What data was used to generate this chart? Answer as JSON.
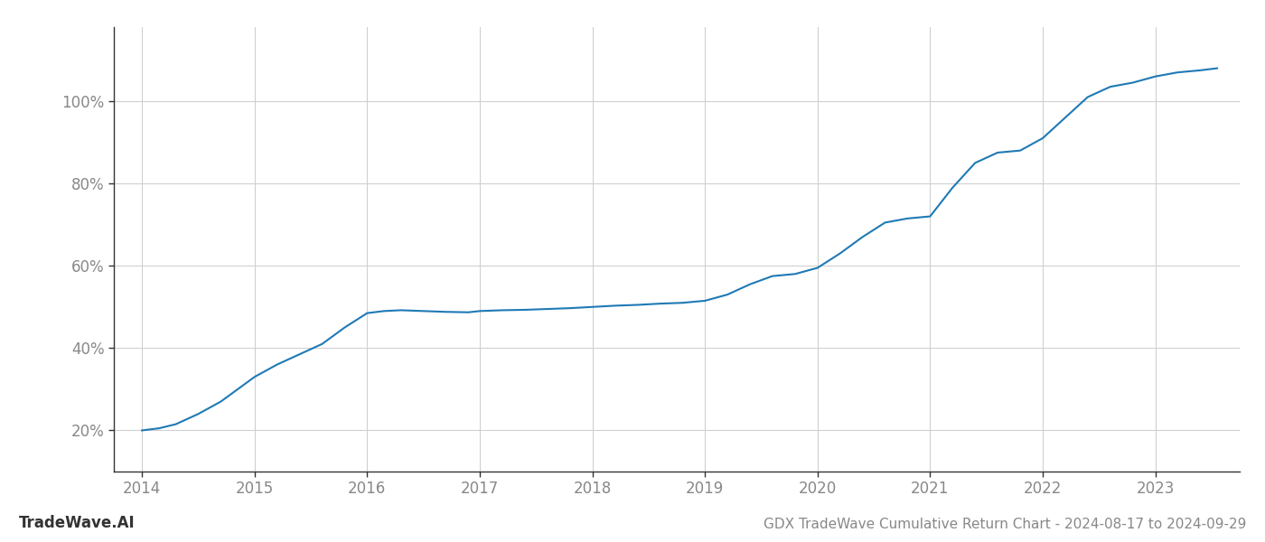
{
  "x_values": [
    2014.0,
    2014.15,
    2014.3,
    2014.5,
    2014.7,
    2014.85,
    2015.0,
    2015.2,
    2015.4,
    2015.6,
    2015.8,
    2016.0,
    2016.15,
    2016.3,
    2016.5,
    2016.7,
    2016.9,
    2017.0,
    2017.2,
    2017.4,
    2017.6,
    2017.8,
    2018.0,
    2018.2,
    2018.4,
    2018.6,
    2018.8,
    2019.0,
    2019.2,
    2019.4,
    2019.6,
    2019.8,
    2020.0,
    2020.2,
    2020.4,
    2020.6,
    2020.8,
    2021.0,
    2021.2,
    2021.4,
    2021.6,
    2021.8,
    2022.0,
    2022.2,
    2022.4,
    2022.6,
    2022.8,
    2023.0,
    2023.2,
    2023.4,
    2023.55
  ],
  "y_values": [
    20.0,
    20.5,
    21.5,
    24.0,
    27.0,
    30.0,
    33.0,
    36.0,
    38.5,
    41.0,
    45.0,
    48.5,
    49.0,
    49.2,
    49.0,
    48.8,
    48.7,
    49.0,
    49.2,
    49.3,
    49.5,
    49.7,
    50.0,
    50.3,
    50.5,
    50.8,
    51.0,
    51.5,
    53.0,
    55.5,
    57.5,
    58.0,
    59.5,
    63.0,
    67.0,
    70.5,
    71.5,
    72.0,
    79.0,
    85.0,
    87.5,
    88.0,
    91.0,
    96.0,
    101.0,
    103.5,
    104.5,
    106.0,
    107.0,
    107.5,
    108.0
  ],
  "line_color": "#1f7ab5",
  "line_width": 1.5,
  "title": "GDX TradeWave Cumulative Return Chart - 2024-08-17 to 2024-09-29",
  "watermark": "TradeWave.AI",
  "xlim": [
    2013.75,
    2023.75
  ],
  "ylim": [
    10,
    118
  ],
  "yticks": [
    20,
    40,
    60,
    80,
    100
  ],
  "xticks": [
    2014,
    2015,
    2016,
    2017,
    2018,
    2019,
    2020,
    2021,
    2022,
    2023
  ],
  "background_color": "#ffffff",
  "grid_color": "#d0d0d0",
  "title_fontsize": 11,
  "tick_fontsize": 12,
  "watermark_fontsize": 12
}
